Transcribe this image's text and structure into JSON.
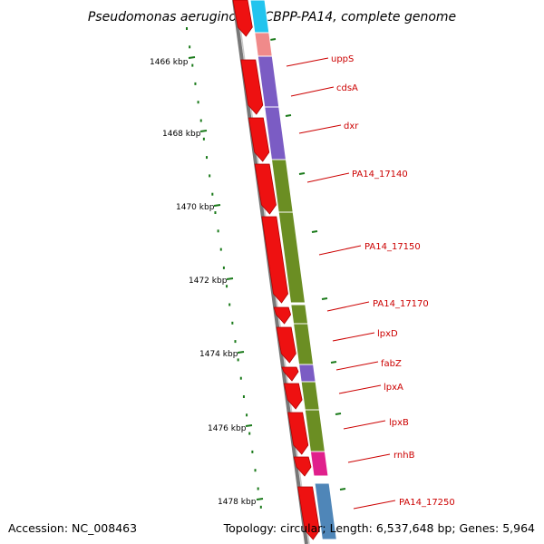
{
  "title": "Pseudomonas aeruginosa UCBPP-PA14, complete genome",
  "footer": {
    "accession": "Accession: NC_008463",
    "topology": "Topology: circular; Length: 6,537,648 bp; Genes: 5,964"
  },
  "ruler": {
    "tick_color": "#1a7a1a",
    "labels": [
      "1466 kbp",
      "1468 kbp",
      "1470 kbp",
      "1472 kbp",
      "1474 kbp",
      "1476 kbp",
      "1478 kbp"
    ]
  },
  "genes": [
    {
      "name": "uppS",
      "color": "#f08a8a"
    },
    {
      "name": "cdsA",
      "color": "#7b5cc4"
    },
    {
      "name": "dxr",
      "color": "#7b5cc4"
    },
    {
      "name": "PA14_17140",
      "color": "#6b8e23"
    },
    {
      "name": "PA14_17150",
      "color": "#6b8e23"
    },
    {
      "name": "PA14_17170",
      "color": "#6b8e23"
    },
    {
      "name": "lpxD",
      "color": "#6b8e23"
    },
    {
      "name": "fabZ",
      "color": "#7b5cc4"
    },
    {
      "name": "lpxA",
      "color": "#6b8e23"
    },
    {
      "name": "lpxB",
      "color": "#6b8e23"
    },
    {
      "name": "rnhB",
      "color": "#e0208c"
    },
    {
      "name": "PA14_17250",
      "color": "#4f86b8"
    }
  ],
  "colors": {
    "backbone": "#8a8a8a",
    "cds_arrow": "#ee1111",
    "top_segment": "#22c4ee",
    "label_line": "#cc0000"
  }
}
